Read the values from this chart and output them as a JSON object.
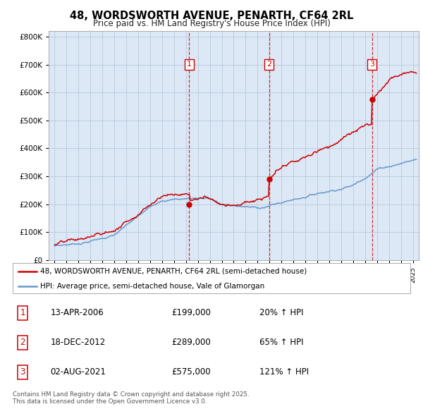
{
  "title": "48, WORDSWORTH AVENUE, PENARTH, CF64 2RL",
  "subtitle": "Price paid vs. HM Land Registry's House Price Index (HPI)",
  "legend_line1": "48, WORDSWORTH AVENUE, PENARTH, CF64 2RL (semi-detached house)",
  "legend_line2": "HPI: Average price, semi-detached house, Vale of Glamorgan",
  "sale_events": [
    {
      "label": "1",
      "date": "13-APR-2006",
      "price": 199000,
      "pct": "20%",
      "year": 2006.28
    },
    {
      "label": "2",
      "date": "18-DEC-2012",
      "price": 289000,
      "pct": "65%",
      "year": 2012.96
    },
    {
      "label": "3",
      "date": "02-AUG-2021",
      "price": 575000,
      "pct": "121%",
      "year": 2021.58
    }
  ],
  "ylim": [
    0,
    820000
  ],
  "xlim": [
    1994.5,
    2025.5
  ],
  "yticks": [
    0,
    100000,
    200000,
    300000,
    400000,
    500000,
    600000,
    700000,
    800000
  ],
  "background_color": "#ffffff",
  "plot_bg_color": "#dce8f5",
  "grid_color": "#b8c8dc",
  "red_color": "#cc0000",
  "blue_color": "#6699cc",
  "marker_box_color": "#cc0000",
  "footer_text": "Contains HM Land Registry data © Crown copyright and database right 2025.\nThis data is licensed under the Open Government Licence v3.0."
}
